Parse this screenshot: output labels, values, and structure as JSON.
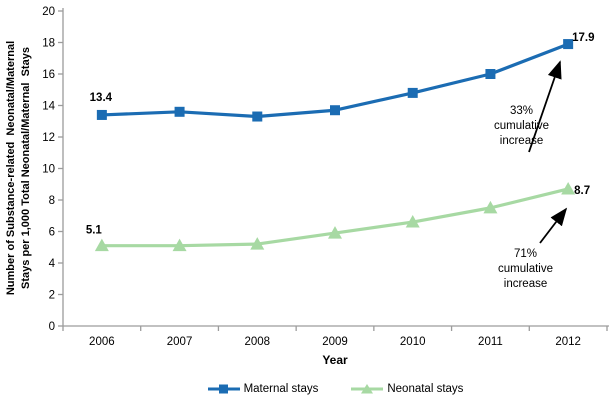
{
  "axes": {
    "y_title": "Number of Substance-related  Neonatal/Maternal\nStays per 1,000 Total Neonatal/Maternal  Stays",
    "x_title": "Year"
  },
  "annotations": {
    "maternal_note": "33%\ncumulative\nincrease",
    "neonatal_note": "71%\ncumulative\nincrease"
  },
  "colors": {
    "maternal_blue": "#1B6CB3",
    "neonatal_green": "#A7D9A3",
    "axis_gray": "#9C9C9C",
    "arrow_black": "#000000"
  },
  "chart_data": {
    "type": "line",
    "x": [
      "2006",
      "2007",
      "2008",
      "2009",
      "2010",
      "2011",
      "2012"
    ],
    "xlabel": "Year",
    "ylabel": "Number of Substance-related Neonatal/Maternal Stays per 1,000 Total Neonatal/Maternal Stays",
    "ylim": [
      0,
      20
    ],
    "ytick_step": 2,
    "grid": false,
    "legend_position": "bottom",
    "series": [
      {
        "name": "Maternal stays",
        "marker": "square",
        "color": "#1B6CB3",
        "values": [
          13.4,
          13.6,
          13.3,
          13.7,
          14.8,
          16.0,
          17.9
        ],
        "point_labels": [
          {
            "index": 0,
            "text": "13.4"
          },
          {
            "index": 6,
            "text": "17.9"
          }
        ],
        "annotation": "33% cumulative increase"
      },
      {
        "name": "Neonatal stays",
        "marker": "triangle",
        "color": "#A7D9A3",
        "values": [
          5.1,
          5.1,
          5.2,
          5.9,
          6.6,
          7.5,
          8.7
        ],
        "point_labels": [
          {
            "index": 0,
            "text": "5.1"
          },
          {
            "index": 6,
            "text": "8.7"
          }
        ],
        "annotation": "71% cumulative increase"
      }
    ]
  }
}
